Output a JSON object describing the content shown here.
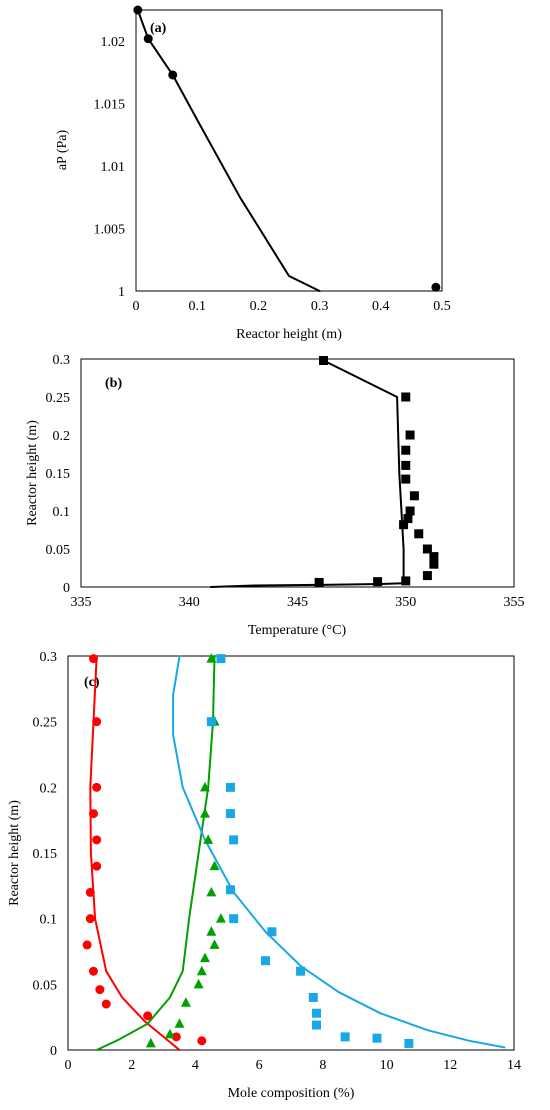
{
  "chart_data": [
    {
      "type": "scatter",
      "panel_label": "(a)",
      "xlabel": "Reactor height (m)",
      "ylabel": "aP (Pa)",
      "xlim": [
        0,
        0.5
      ],
      "ylim": [
        1,
        1.0225
      ],
      "xticks": [
        "0",
        "0.1",
        "0.2",
        "0.3",
        "0.4",
        "0.5"
      ],
      "xtick_values": [
        0,
        0.1,
        0.2,
        0.3,
        0.4,
        0.5
      ],
      "yticks": [
        "1",
        "1.005",
        "1.01",
        "1.015",
        "1.02"
      ],
      "ytick_values": [
        1,
        1.005,
        1.01,
        1.015,
        1.02
      ],
      "grid": false,
      "series": [
        {
          "kind": "points",
          "color": "#000000",
          "marker": "circle",
          "x": [
            0.003,
            0.02,
            0.06,
            0.49
          ],
          "y": [
            1.0225,
            1.0202,
            1.0173,
            1.0003
          ]
        },
        {
          "kind": "line",
          "color": "#000000",
          "x": [
            0.003,
            0.02,
            0.06,
            0.1,
            0.17,
            0.25,
            0.3
          ],
          "y": [
            1.0225,
            1.0202,
            1.0173,
            1.0137,
            1.0075,
            1.0012,
            1.0
          ]
        }
      ]
    },
    {
      "type": "scatter",
      "panel_label": "(b)",
      "xlabel": "Temperature (°C)",
      "ylabel": "Reactor height (m)",
      "xlim": [
        335,
        355
      ],
      "ylim": [
        0,
        0.3
      ],
      "xticks": [
        "335",
        "340",
        "345",
        "350",
        "355"
      ],
      "xtick_values": [
        335,
        340,
        345,
        350,
        355
      ],
      "yticks": [
        "0",
        "0.05",
        "0.1",
        "0.15",
        "0.2",
        "0.25",
        "0.3"
      ],
      "ytick_values": [
        0,
        0.05,
        0.1,
        0.15,
        0.2,
        0.25,
        0.3
      ],
      "grid": false,
      "series": [
        {
          "kind": "points",
          "color": "#000000",
          "marker": "square",
          "x": [
            346.2,
            350.0,
            350.2,
            350.0,
            350.0,
            350.0,
            350.4,
            350.2,
            350.1,
            349.9,
            350.6,
            351.0,
            351.3,
            351.3,
            351.0,
            346.0,
            348.7,
            350.0
          ],
          "y": [
            0.298,
            0.25,
            0.2,
            0.18,
            0.16,
            0.142,
            0.12,
            0.1,
            0.09,
            0.082,
            0.07,
            0.05,
            0.04,
            0.03,
            0.015,
            0.006,
            0.007,
            0.008
          ]
        },
        {
          "kind": "line",
          "color": "#000000",
          "x": [
            346.2,
            349.6,
            349.7,
            349.9,
            349.9,
            348.8,
            346.5,
            343.0,
            341.0
          ],
          "y": [
            0.298,
            0.25,
            0.15,
            0.05,
            0.005,
            0.004,
            0.003,
            0.002,
            0.0
          ]
        }
      ]
    },
    {
      "type": "scatter",
      "panel_label": "(c)",
      "xlabel": "Mole composition (%)",
      "ylabel": "Reactor height (m)",
      "xlim": [
        0,
        14
      ],
      "ylim": [
        0,
        0.3
      ],
      "xticks": [
        "0",
        "2",
        "4",
        "6",
        "8",
        "10",
        "12",
        "14"
      ],
      "xtick_values": [
        0,
        2,
        4,
        6,
        8,
        10,
        12,
        14
      ],
      "yticks": [
        "0",
        "0.05",
        "0.1",
        "0.15",
        "0.2",
        "0.25",
        "0.3"
      ],
      "ytick_values": [
        0,
        0.05,
        0.1,
        0.15,
        0.2,
        0.25,
        0.3
      ],
      "grid": false,
      "series": [
        {
          "kind": "points",
          "color": "#ff0000",
          "marker": "circle",
          "x": [
            0.8,
            0.9,
            0.9,
            0.8,
            0.9,
            0.9,
            0.7,
            0.7,
            0.6,
            0.8,
            1.0,
            1.2,
            2.5,
            3.4,
            4.2
          ],
          "y": [
            0.298,
            0.25,
            0.2,
            0.18,
            0.16,
            0.14,
            0.12,
            0.1,
            0.08,
            0.06,
            0.046,
            0.035,
            0.026,
            0.01,
            0.007
          ]
        },
        {
          "kind": "line",
          "color": "#ff0000",
          "x": [
            0.9,
            0.8,
            0.7,
            0.72,
            0.85,
            1.2,
            1.7,
            2.4,
            3.0,
            3.5
          ],
          "y": [
            0.3,
            0.25,
            0.2,
            0.15,
            0.1,
            0.06,
            0.04,
            0.022,
            0.01,
            0.0
          ]
        },
        {
          "kind": "points",
          "color": "#00a000",
          "marker": "triangle",
          "x": [
            4.5,
            4.6,
            4.3,
            4.3,
            4.4,
            4.6,
            4.5,
            4.8,
            4.5,
            4.3,
            4.6,
            4.2,
            4.1,
            3.7,
            3.5,
            3.2,
            2.6
          ],
          "y": [
            0.298,
            0.25,
            0.2,
            0.18,
            0.16,
            0.14,
            0.12,
            0.1,
            0.09,
            0.07,
            0.08,
            0.06,
            0.05,
            0.036,
            0.02,
            0.012,
            0.005
          ]
        },
        {
          "kind": "line",
          "color": "#00a000",
          "x": [
            4.6,
            4.55,
            4.4,
            4.1,
            3.8,
            3.6,
            3.2,
            2.5,
            1.6,
            0.9
          ],
          "y": [
            0.3,
            0.25,
            0.2,
            0.15,
            0.1,
            0.06,
            0.04,
            0.02,
            0.008,
            0.0
          ]
        },
        {
          "kind": "points",
          "color": "#1aa7e8",
          "marker": "square",
          "x": [
            4.8,
            4.5,
            5.1,
            5.1,
            5.2,
            5.1,
            5.2,
            6.4,
            6.2,
            7.3,
            7.7,
            7.8,
            7.8,
            8.7,
            9.7,
            10.7
          ],
          "y": [
            0.298,
            0.25,
            0.2,
            0.18,
            0.16,
            0.122,
            0.1,
            0.09,
            0.068,
            0.06,
            0.04,
            0.028,
            0.019,
            0.01,
            0.009,
            0.005
          ]
        },
        {
          "kind": "line",
          "color": "#1aa7e8",
          "x": [
            3.5,
            3.3,
            3.3,
            3.6,
            4.3,
            5.2,
            6.2,
            7.3,
            8.5,
            9.8,
            11.3,
            12.6,
            13.7
          ],
          "y": [
            0.3,
            0.27,
            0.24,
            0.2,
            0.16,
            0.12,
            0.09,
            0.064,
            0.044,
            0.028,
            0.015,
            0.007,
            0.002
          ]
        }
      ]
    }
  ]
}
